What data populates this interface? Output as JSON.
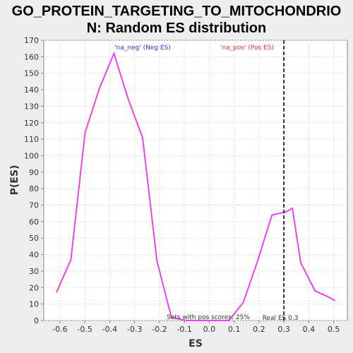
{
  "chart_data": {
    "type": "line",
    "title_line1": "GO_PROTEIN_TARGETING_TO_MITOCHONDRIO",
    "title_line2": "N: Random ES distribution",
    "xlabel": "ES",
    "ylabel": "P(ES)",
    "xlim": [
      -0.665,
      0.555
    ],
    "ylim": [
      0,
      170
    ],
    "xticks": [
      -0.6,
      -0.5,
      -0.4,
      -0.3,
      -0.2,
      -0.1,
      0.0,
      0.1,
      0.2,
      0.3,
      0.4,
      0.5
    ],
    "xtick_labels": [
      "-0.6",
      "-0.5",
      "-0.4",
      "-0.3",
      "-0.2",
      "-0.1",
      "0.0",
      "0.1",
      "0.2",
      "0.3",
      "0.4",
      "0.5"
    ],
    "yticks": [
      0,
      10,
      20,
      30,
      40,
      50,
      60,
      70,
      80,
      90,
      100,
      110,
      120,
      130,
      140,
      150,
      160,
      170
    ],
    "ytick_labels": [
      "0",
      "10",
      "20",
      "30",
      "40",
      "50",
      "60",
      "70",
      "80",
      "90",
      "100",
      "110",
      "120",
      "130",
      "140",
      "150",
      "160",
      "170"
    ],
    "grid": true,
    "series": [
      {
        "color": "#ee44ee",
        "x": [
          -0.614,
          -0.556,
          -0.499,
          -0.441,
          -0.383,
          -0.325,
          -0.268,
          -0.21,
          -0.152,
          -0.094,
          -0.037,
          0.021,
          0.079,
          0.137,
          0.194,
          0.252,
          0.31,
          0.334,
          0.368,
          0.425,
          0.483,
          0.506
        ],
        "y": [
          17,
          37,
          114,
          141,
          162,
          134,
          111,
          36,
          2,
          0,
          0,
          0,
          0,
          11,
          36,
          64,
          66,
          68,
          35,
          18,
          14,
          12
        ]
      }
    ],
    "legend_neg": {
      "text": "'na_neg' (Neg ES)",
      "color": "#3333cc"
    },
    "legend_pos": {
      "text": "'na_pos' (Pos ES)",
      "color": "#ee3333"
    },
    "real_es": {
      "x": 0.3,
      "label": "Real ES 0.3"
    },
    "sets_annotation": "Sets with pos scores: 25%"
  }
}
